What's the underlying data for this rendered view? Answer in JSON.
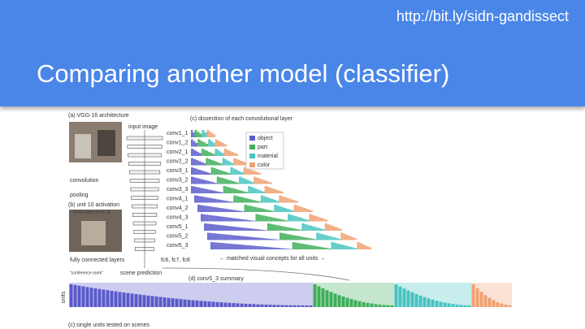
{
  "header": {
    "url": "http://bit.ly/sidn-gandissect",
    "title": "Comparing another model (classifier)"
  },
  "figure": {
    "panel_a": "(a) VGG-16 architecture",
    "input_label": "input image",
    "convolution_label": "convolution",
    "pooling_label": "pooling",
    "panel_b": "(b) unit 10 activation",
    "panel_b_sub": "(from layer conv5_3)",
    "fc_label": "fully connected layers",
    "scene_label": "scene prediction",
    "scene_value": "\"conference room\"",
    "fc_names": "fc6, fc7, fc8",
    "panel_c": "(c) dissection of each convolutional layer",
    "layers": [
      "conv1_1",
      "conv1_2",
      "conv2_1",
      "conv2_2",
      "conv3_1",
      "conv3_2",
      "conv3_3",
      "conv4_1",
      "conv4_2",
      "conv4_3",
      "conv5_1",
      "conv5_2",
      "conv5_3"
    ],
    "legend": [
      {
        "name": "object",
        "color": "#5a5acb"
      },
      {
        "name": "part",
        "color": "#3fae5a"
      },
      {
        "name": "material",
        "color": "#45c4c0"
      },
      {
        "name": "color",
        "color": "#f0a070"
      }
    ],
    "matched": "← matched visual concepts for all units →",
    "panel_d": "(d) conv5_3 summary",
    "panel_e": "(c) single units tested on scenes",
    "units_axis": "units"
  }
}
